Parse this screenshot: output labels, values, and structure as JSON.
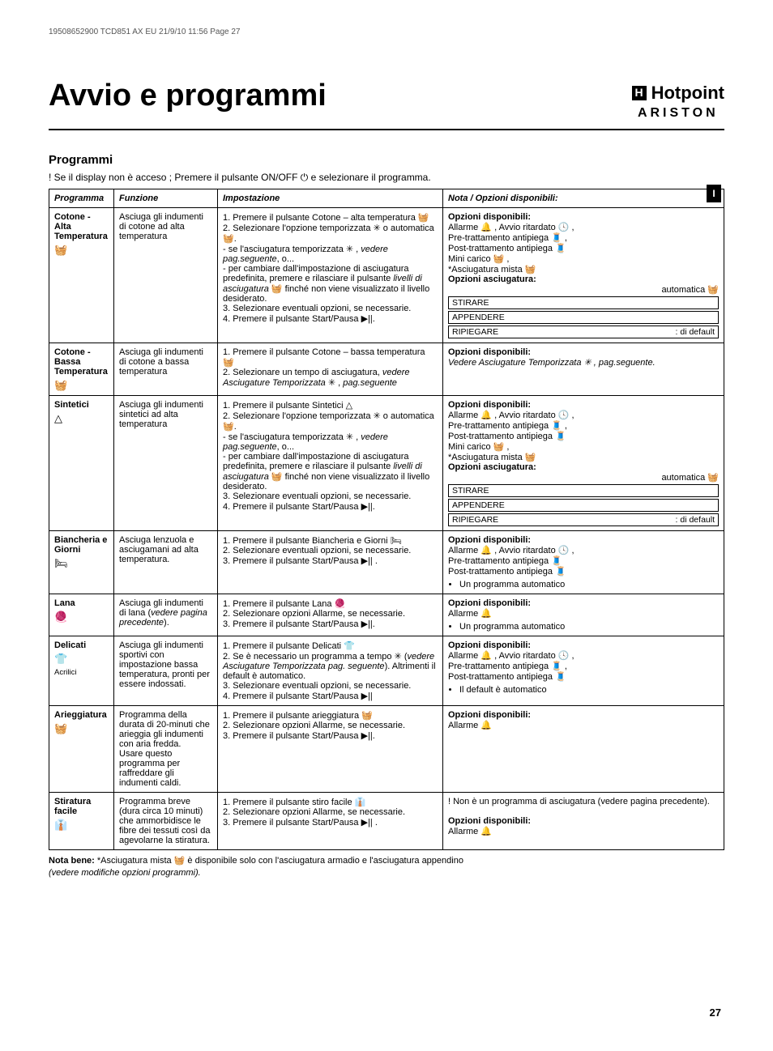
{
  "imprint": "19508652900 TCD851 AX EU  21/9/10  11:56  Page 27",
  "title": "Avvio e programmi",
  "brand_top": "Hotpoint",
  "brand_bottom": "ARISTON",
  "side_tab": "I",
  "section": "Programmi",
  "intro": "! Se il display non è acceso ; Premere il pulsante ON/OFF ⏻ e selezionare il programma.",
  "headers": {
    "prog": "Programma",
    "func": "Funzione",
    "impo": "Impostazione",
    "note": "Nota / Opzioni disponibili:"
  },
  "icons": {
    "cotton": "🧺",
    "cotton_low": "🧺",
    "syn": "△",
    "bed": "🛏",
    "wool": "🧶",
    "del": "👕",
    "air": "🧺",
    "iron": "👔",
    "sun": "✳",
    "auto": "🧺",
    "play": "▶||",
    "bell": "🔔",
    "delay_clock": "🕓",
    "pretreat": "🧵",
    "posttreat": "🧵",
    "mini": "🧺",
    "mix": "🧺",
    "level": "🧺"
  },
  "options_labels": {
    "available": "Opzioni disponibili:",
    "dry_options": "Opzioni asciugatura:",
    "automatic": "automatica",
    "stirare": "STIRARE",
    "appendere": "APPENDERE",
    "ripiegare": "RIPIEGARE",
    "default": ": di default",
    "alarm": "Allarme",
    "delay": "Avvio ritardato",
    "pretreat": "Pre-trattamento antipiega",
    "posttreat": "Post-trattamento antipiega",
    "mini": "Mini carico",
    "mixed": "*Asciugatura mista",
    "see_timed": "Vedere Asciugature Temporizzata ✳ , pag.seguente.",
    "auto_prog": "Un programma automatico",
    "default_auto": "Il default è automatico",
    "not_dry_prog": "! Non è un programma di asciugatura (vedere pagina precedente)."
  },
  "rows": [
    {
      "name": "Cotone - Alta Temperatura",
      "icon": "cotton",
      "func": "Asciuga gli indumenti di cotone ad alta temperatura",
      "steps": [
        "1. Premere il pulsante Cotone – alta temperatura 🧺",
        "2. Selezionare l'opzione temporizzata ✳ o automatica 🧺.",
        "- se l'asciugatura temporizzata ✳ , <i>vedere pag.seguente</i>, o...",
        "- per cambiare dall'impostazione di asciugatura predefinita, premere e rilasciare il pulsante <i>livelli di asciugatura</i> 🧺 finché non viene visualizzato il livello desiderato.",
        "3. Selezionare eventuali opzioni, se necessarie.",
        "4. Premere il pulsante Start/Pausa ▶||."
      ],
      "note_type": "full_options"
    },
    {
      "name": "Cotone - Bassa Temperatura",
      "icon": "cotton_low",
      "func": "Asciuga gli indumenti di cotone a bassa temperatura",
      "steps": [
        "1. Premere il pulsante Cotone – bassa temperatura 🧺",
        "2. Selezionare un tempo di asciugatura, <i>vedere Asciugature Temporizzata</i> ✳ , <i>pag.seguente</i>"
      ],
      "note_type": "see_timed"
    },
    {
      "name": "Sintetici",
      "icon": "syn",
      "func": "Asciuga gli indumenti sintetici ad alta temperatura",
      "steps": [
        "1. Premere il pulsante Sintetici △",
        "2. Selezionare l'opzione temporizzata ✳ o automatica 🧺.",
        "- se l'asciugatura temporizzata ✳ , <i>vedere pag.seguente</i>, o...",
        "- per cambiare dall'impostazione di asciugatura predefinita, premere e rilasciare il pulsante <i>livelli di asciugatura</i> 🧺 finché non viene visualizzato il livello desiderato.",
        "3. Selezionare eventuali opzioni, se necessarie.",
        "4. Premere il pulsante Start/Pausa ▶||."
      ],
      "note_type": "full_options"
    },
    {
      "name": "Biancheria e Giorni",
      "icon": "bed",
      "func": "Asciuga lenzuola e asciugamani ad alta temperatura.",
      "steps": [
        "1. Premere il pulsante Biancheria e Giorni 🛏",
        "2. Selezionare eventuali opzioni, se necessarie.",
        "3. Premere il pulsante Start/Pausa ▶|| ."
      ],
      "note_type": "four_opts_auto"
    },
    {
      "name": "Lana",
      "icon": "wool",
      "func": "Asciuga gli indumenti di lana (<i>vedere pagina precedente</i>).",
      "steps": [
        "1. Premere il pulsante Lana 🧶",
        "2. Selezionare opzioni Allarme, se necessarie.",
        "3. Premere il pulsante Start/Pausa ▶||."
      ],
      "note_type": "alarm_auto"
    },
    {
      "name": "Delicati",
      "sub": "Acrilici",
      "icon": "del",
      "func": "Asciuga gli indumenti sportivi con impostazione bassa temperatura, pronti per essere indossati.",
      "steps": [
        "1. Premere il pulsante Delicati 👕",
        "2. Se è necessario un programma a tempo ✳ (<i>vedere Asciugature Temporizzata pag. seguente</i>). Altrimenti il default è automatico.",
        "3. Selezionare eventuali opzioni, se necessarie.",
        "4. Premere il pulsante Start/Pausa ▶||"
      ],
      "note_type": "four_opts_defauto"
    },
    {
      "name": "Arieggiatura",
      "icon": "air",
      "func": "Programma della durata di 20-minuti che arieggia gli indumenti con aria fredda.\nUsare questo programma per raffreddare gli indumenti caldi.",
      "steps": [
        "1. Premere il pulsante arieggiatura 🧺",
        "2. Selezionare opzioni Allarme, se necessarie.",
        "3. Premere il pulsante Start/Pausa ▶||."
      ],
      "note_type": "alarm_only"
    },
    {
      "name": "Stiratura facile",
      "icon": "iron",
      "func": "Programma breve (dura circa 10 minuti) che ammorbidisce le fibre dei tessuti così da agevolarne la stiratura.",
      "steps": [
        "1. Premere il pulsante stiro facile 👔",
        "2. Selezionare opzioni Allarme, se necessarie.",
        "3. Premere il pulsante Start/Pausa ▶|| ."
      ],
      "note_type": "not_dry"
    }
  ],
  "footer": "Nota bene: *Asciugatura mista 🧺  è disponibile solo con l'asciugatura armadio e l'asciugatura appendino",
  "footer_italic": "(vedere modifiche opzioni programmi).",
  "page_number": "27"
}
